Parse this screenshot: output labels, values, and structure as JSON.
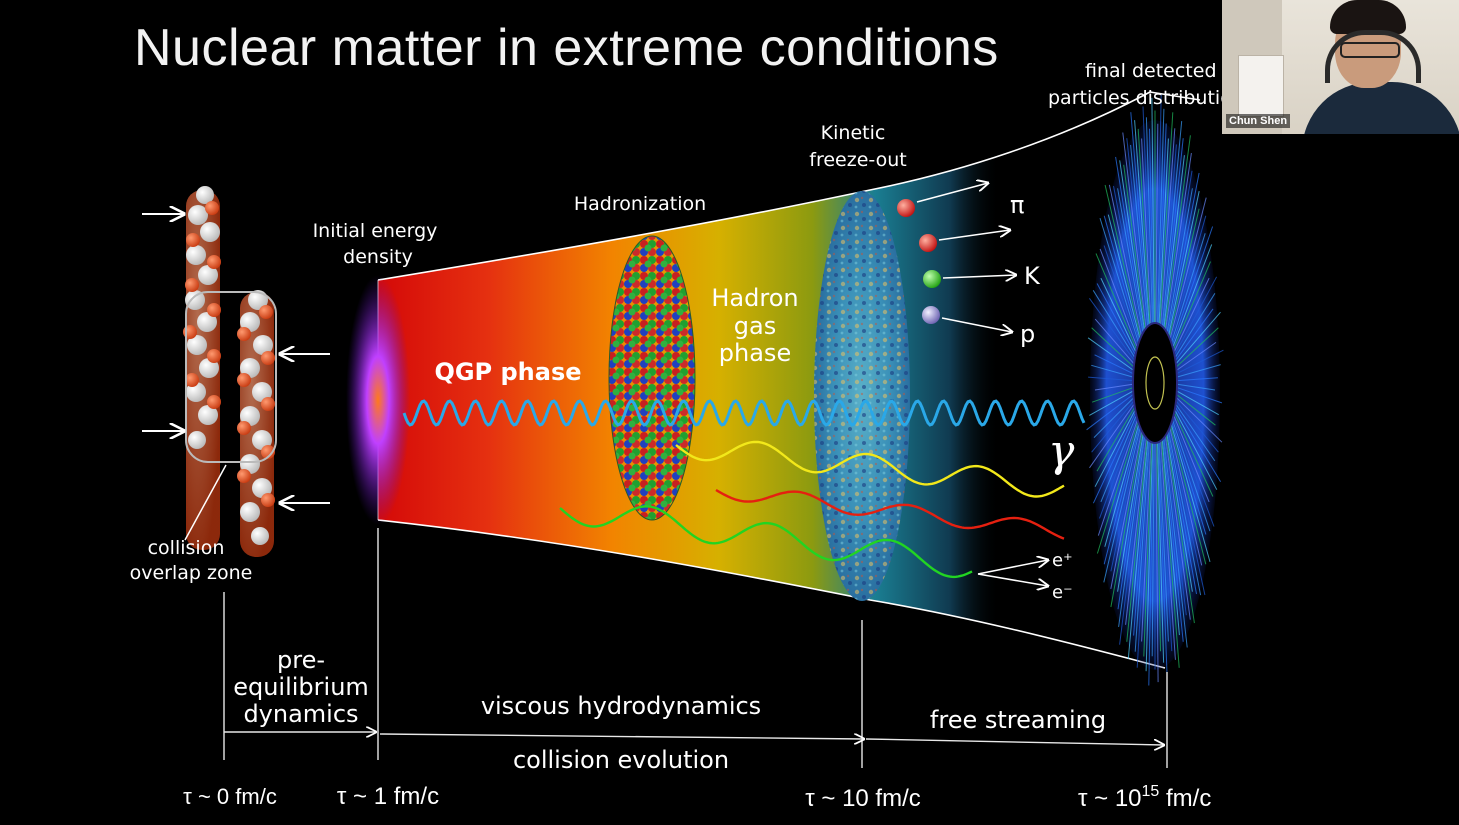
{
  "slide": {
    "title": "Nuclear matter in extreme conditions"
  },
  "labels": {
    "collision_overlap_1": "collision",
    "collision_overlap_2": "overlap zone",
    "initial_energy_1": "Initial energy",
    "initial_energy_2": "density",
    "hadronization": "Hadronization",
    "kinetic_1": "Kinetic",
    "kinetic_2": "freeze-out",
    "final_1": "final detected",
    "final_2": "particles distribution",
    "qgp": "QGP phase",
    "hadron_gas_1": "Hadron",
    "hadron_gas_2": "gas",
    "hadron_gas_3": "phase",
    "pi": "π",
    "K": "K",
    "p": "p",
    "gamma": "γ",
    "e_plus": "e⁺",
    "e_minus": "e⁻"
  },
  "timeline": {
    "pre_eq_1": "pre-",
    "pre_eq_2": "equilibrium",
    "pre_eq_3": "dynamics",
    "viscous": "viscous hydrodynamics",
    "collision_evolution": "collision evolution",
    "free_streaming": "free streaming",
    "t0": "τ ~ 0 fm/c",
    "t1": "τ ~ 1 fm/c",
    "t10": "τ ~ 10 fm/c",
    "t15_base": "τ ~ 10",
    "t15_exp": "15",
    "t15_unit": " fm/c"
  },
  "video": {
    "participant_name": "Chun Shen"
  },
  "colors": {
    "qgp_red": "#e01010",
    "qgp_orange": "#f08a00",
    "hadron_gold": "#c9b400",
    "teal": "#1a8a9a",
    "photon_blue": "#2aa8e8",
    "wave_yellow": "#f2e81a",
    "wave_red": "#e52010",
    "wave_green": "#22d422"
  },
  "icons": [
    "arrow-right-icon",
    "arrow-left-icon",
    "particle-ball-icon",
    "wave-icon"
  ]
}
